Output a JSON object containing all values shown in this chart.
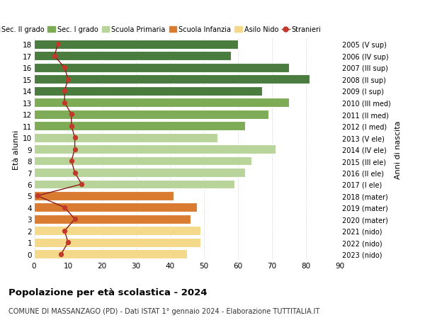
{
  "ages": [
    18,
    17,
    16,
    15,
    14,
    13,
    12,
    11,
    10,
    9,
    8,
    7,
    6,
    5,
    4,
    3,
    2,
    1,
    0
  ],
  "bar_values": [
    60,
    58,
    75,
    81,
    67,
    75,
    69,
    62,
    54,
    71,
    64,
    62,
    59,
    41,
    48,
    46,
    49,
    49,
    45
  ],
  "stranieri": [
    7,
    6,
    9,
    10,
    9,
    9,
    11,
    11,
    12,
    12,
    11,
    12,
    14,
    1,
    9,
    12,
    9,
    10,
    8
  ],
  "right_labels": [
    "2005 (V sup)",
    "2006 (IV sup)",
    "2007 (III sup)",
    "2008 (II sup)",
    "2009 (I sup)",
    "2010 (III med)",
    "2011 (II med)",
    "2012 (I med)",
    "2013 (V ele)",
    "2014 (IV ele)",
    "2015 (III ele)",
    "2016 (II ele)",
    "2017 (I ele)",
    "2018 (mater)",
    "2019 (mater)",
    "2020 (mater)",
    "2021 (nido)",
    "2022 (nido)",
    "2023 (nido)"
  ],
  "colors": {
    "sec2": "#4a7c3f",
    "sec1": "#7eab55",
    "primaria": "#b8d49a",
    "infanzia": "#d97c32",
    "nido": "#f5d98b",
    "stranieri_line": "#8b1a1a",
    "stranieri_dot": "#c0392b",
    "grid": "#cccccc",
    "bg": "#ffffff"
  },
  "legend_labels": [
    "Sec. II grado",
    "Sec. I grado",
    "Scuola Primaria",
    "Scuola Infanzia",
    "Asilo Nido",
    "Stranieri"
  ],
  "title": "Popolazione per età scolastica - 2024",
  "subtitle": "COMUNE DI MASSANZAGO (PD) - Dati ISTAT 1° gennaio 2024 - Elaborazione TUTTITALIA.IT",
  "ylabel_left": "Età alunni",
  "ylabel_right": "Anni di nascita",
  "xlim": [
    0,
    90
  ],
  "xticks": [
    0,
    10,
    20,
    30,
    40,
    50,
    60,
    70,
    80,
    90
  ]
}
